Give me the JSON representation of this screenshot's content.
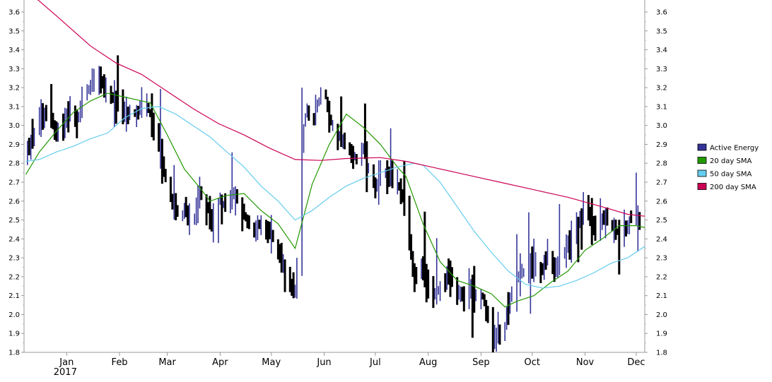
{
  "chart_data": {
    "type": "line",
    "title": "",
    "xlabel": "",
    "ylabel": "",
    "ylim": [
      1.8,
      3.65
    ],
    "y_ticks": [
      "1.8",
      "1.9",
      "2.0",
      "2.1",
      "2.2",
      "2.3",
      "2.4",
      "2.5",
      "2.6",
      "2.7",
      "2.8",
      "2.9",
      "3.0",
      "3.1",
      "3.2",
      "3.3",
      "3.4",
      "3.5",
      "3.6"
    ],
    "x_ticks": [
      {
        "label": "Jan",
        "sub": "2017",
        "day": 16
      },
      {
        "label": "Feb",
        "sub": "",
        "day": 47
      },
      {
        "label": "Mar",
        "sub": "",
        "day": 75
      },
      {
        "label": "Apr",
        "sub": "",
        "day": 106
      },
      {
        "label": "May",
        "sub": "",
        "day": 136
      },
      {
        "label": "Jun",
        "sub": "",
        "day": 167
      },
      {
        "label": "Jul",
        "sub": "",
        "day": 197
      },
      {
        "label": "Aug",
        "sub": "",
        "day": 228
      },
      {
        "label": "Sep",
        "sub": "",
        "day": 259
      },
      {
        "label": "Oct",
        "sub": "",
        "day": 289
      },
      {
        "label": "Nov",
        "sub": "",
        "day": 320
      },
      {
        "label": "Dec",
        "sub": "",
        "day": 350
      }
    ],
    "x_range_days": [
      -9,
      355
    ],
    "grid": false,
    "legend_position": "right",
    "series": [
      {
        "name": "Active Energy",
        "type": "ohlc",
        "color": "#333399",
        "down_color": "#000000",
        "anchors": [
          {
            "day": -8,
            "v": 2.85
          },
          {
            "day": -4,
            "v": 2.92
          },
          {
            "day": 0,
            "v": 3.05
          },
          {
            "day": 5,
            "v": 3.07
          },
          {
            "day": 10,
            "v": 2.98
          },
          {
            "day": 15,
            "v": 3.02
          },
          {
            "day": 18,
            "v": 3.1
          },
          {
            "day": 22,
            "v": 3.0
          },
          {
            "day": 26,
            "v": 3.15
          },
          {
            "day": 30,
            "v": 3.2
          },
          {
            "day": 34,
            "v": 3.28
          },
          {
            "day": 38,
            "v": 3.2
          },
          {
            "day": 42,
            "v": 3.15
          },
          {
            "day": 47,
            "v": 3.1
          },
          {
            "day": 52,
            "v": 3.05
          },
          {
            "day": 58,
            "v": 3.08
          },
          {
            "day": 62,
            "v": 3.12
          },
          {
            "day": 66,
            "v": 3.05
          },
          {
            "day": 70,
            "v": 2.9
          },
          {
            "day": 74,
            "v": 2.72
          },
          {
            "day": 78,
            "v": 2.58
          },
          {
            "day": 82,
            "v": 2.52
          },
          {
            "day": 86,
            "v": 2.55
          },
          {
            "day": 90,
            "v": 2.45
          },
          {
            "day": 94,
            "v": 2.65
          },
          {
            "day": 98,
            "v": 2.58
          },
          {
            "day": 102,
            "v": 2.5
          },
          {
            "day": 106,
            "v": 2.62
          },
          {
            "day": 110,
            "v": 2.55
          },
          {
            "day": 114,
            "v": 2.65
          },
          {
            "day": 118,
            "v": 2.58
          },
          {
            "day": 122,
            "v": 2.5
          },
          {
            "day": 126,
            "v": 2.45
          },
          {
            "day": 130,
            "v": 2.47
          },
          {
            "day": 134,
            "v": 2.45
          },
          {
            "day": 138,
            "v": 2.4
          },
          {
            "day": 142,
            "v": 2.28
          },
          {
            "day": 146,
            "v": 2.15
          },
          {
            "day": 150,
            "v": 2.12
          },
          {
            "day": 152,
            "v": 2.25
          },
          {
            "day": 154,
            "v": 2.9
          },
          {
            "day": 157,
            "v": 3.1
          },
          {
            "day": 160,
            "v": 3.0
          },
          {
            "day": 163,
            "v": 3.1
          },
          {
            "day": 167,
            "v": 3.22
          },
          {
            "day": 170,
            "v": 3.05
          },
          {
            "day": 174,
            "v": 2.95
          },
          {
            "day": 178,
            "v": 2.92
          },
          {
            "day": 182,
            "v": 2.88
          },
          {
            "day": 186,
            "v": 2.82
          },
          {
            "day": 190,
            "v": 2.88
          },
          {
            "day": 194,
            "v": 2.75
          },
          {
            "day": 198,
            "v": 2.68
          },
          {
            "day": 202,
            "v": 2.75
          },
          {
            "day": 206,
            "v": 2.72
          },
          {
            "day": 210,
            "v": 2.7
          },
          {
            "day": 214,
            "v": 2.6
          },
          {
            "day": 217,
            "v": 2.4
          },
          {
            "day": 220,
            "v": 2.2
          },
          {
            "day": 224,
            "v": 2.25
          },
          {
            "day": 228,
            "v": 2.15
          },
          {
            "day": 232,
            "v": 2.12
          },
          {
            "day": 236,
            "v": 2.15
          },
          {
            "day": 240,
            "v": 2.22
          },
          {
            "day": 244,
            "v": 2.15
          },
          {
            "day": 248,
            "v": 2.1
          },
          {
            "day": 252,
            "v": 2.13
          },
          {
            "day": 256,
            "v": 2.12
          },
          {
            "day": 260,
            "v": 2.1
          },
          {
            "day": 264,
            "v": 1.95
          },
          {
            "day": 268,
            "v": 1.9
          },
          {
            "day": 272,
            "v": 1.88
          },
          {
            "day": 275,
            "v": 2.05
          },
          {
            "day": 278,
            "v": 2.15
          },
          {
            "day": 282,
            "v": 2.2
          },
          {
            "day": 286,
            "v": 2.25
          },
          {
            "day": 290,
            "v": 2.28
          },
          {
            "day": 294,
            "v": 2.22
          },
          {
            "day": 298,
            "v": 2.3
          },
          {
            "day": 302,
            "v": 2.25
          },
          {
            "day": 306,
            "v": 2.3
          },
          {
            "day": 310,
            "v": 2.35
          },
          {
            "day": 314,
            "v": 2.42
          },
          {
            "day": 318,
            "v": 2.5
          },
          {
            "day": 320,
            "v": 2.72
          },
          {
            "day": 323,
            "v": 2.5
          },
          {
            "day": 326,
            "v": 2.45
          },
          {
            "day": 330,
            "v": 2.52
          },
          {
            "day": 334,
            "v": 2.48
          },
          {
            "day": 338,
            "v": 2.45
          },
          {
            "day": 342,
            "v": 2.4
          },
          {
            "day": 345,
            "v": 2.48
          },
          {
            "day": 348,
            "v": 2.52
          },
          {
            "day": 352,
            "v": 2.5
          }
        ]
      },
      {
        "name": "20 day SMA",
        "type": "line",
        "color": "#229900",
        "points": [
          {
            "day": -8,
            "v": 2.74
          },
          {
            "day": 0,
            "v": 2.86
          },
          {
            "day": 10,
            "v": 2.97
          },
          {
            "day": 20,
            "v": 3.07
          },
          {
            "day": 30,
            "v": 3.13
          },
          {
            "day": 40,
            "v": 3.17
          },
          {
            "day": 50,
            "v": 3.15
          },
          {
            "day": 60,
            "v": 3.13
          },
          {
            "day": 65,
            "v": 3.12
          },
          {
            "day": 75,
            "v": 2.95
          },
          {
            "day": 85,
            "v": 2.77
          },
          {
            "day": 95,
            "v": 2.66
          },
          {
            "day": 100,
            "v": 2.6
          },
          {
            "day": 110,
            "v": 2.63
          },
          {
            "day": 120,
            "v": 2.64
          },
          {
            "day": 130,
            "v": 2.55
          },
          {
            "day": 140,
            "v": 2.48
          },
          {
            "day": 150,
            "v": 2.35
          },
          {
            "day": 155,
            "v": 2.52
          },
          {
            "day": 160,
            "v": 2.69
          },
          {
            "day": 170,
            "v": 2.9
          },
          {
            "day": 180,
            "v": 3.06
          },
          {
            "day": 190,
            "v": 2.99
          },
          {
            "day": 200,
            "v": 2.9
          },
          {
            "day": 210,
            "v": 2.78
          },
          {
            "day": 215,
            "v": 2.73
          },
          {
            "day": 225,
            "v": 2.48
          },
          {
            "day": 235,
            "v": 2.28
          },
          {
            "day": 245,
            "v": 2.18
          },
          {
            "day": 255,
            "v": 2.15
          },
          {
            "day": 265,
            "v": 2.11
          },
          {
            "day": 273,
            "v": 2.04
          },
          {
            "day": 280,
            "v": 2.07
          },
          {
            "day": 290,
            "v": 2.1
          },
          {
            "day": 300,
            "v": 2.17
          },
          {
            "day": 310,
            "v": 2.23
          },
          {
            "day": 320,
            "v": 2.34
          },
          {
            "day": 330,
            "v": 2.4
          },
          {
            "day": 340,
            "v": 2.47
          },
          {
            "day": 350,
            "v": 2.47
          },
          {
            "day": 355,
            "v": 2.46
          }
        ]
      },
      {
        "name": "50 day SMA",
        "type": "line",
        "color": "#66ccee",
        "points": [
          {
            "day": -8,
            "v": 2.81
          },
          {
            "day": 0,
            "v": 2.82
          },
          {
            "day": 10,
            "v": 2.86
          },
          {
            "day": 20,
            "v": 2.89
          },
          {
            "day": 30,
            "v": 2.93
          },
          {
            "day": 40,
            "v": 2.96
          },
          {
            "day": 50,
            "v": 3.04
          },
          {
            "day": 60,
            "v": 3.09
          },
          {
            "day": 70,
            "v": 3.1
          },
          {
            "day": 80,
            "v": 3.06
          },
          {
            "day": 90,
            "v": 3.0
          },
          {
            "day": 100,
            "v": 2.94
          },
          {
            "day": 110,
            "v": 2.86
          },
          {
            "day": 120,
            "v": 2.78
          },
          {
            "day": 130,
            "v": 2.68
          },
          {
            "day": 140,
            "v": 2.6
          },
          {
            "day": 150,
            "v": 2.5
          },
          {
            "day": 160,
            "v": 2.55
          },
          {
            "day": 170,
            "v": 2.62
          },
          {
            "day": 180,
            "v": 2.68
          },
          {
            "day": 190,
            "v": 2.72
          },
          {
            "day": 200,
            "v": 2.75
          },
          {
            "day": 210,
            "v": 2.78
          },
          {
            "day": 220,
            "v": 2.8
          },
          {
            "day": 225,
            "v": 2.79
          },
          {
            "day": 235,
            "v": 2.7
          },
          {
            "day": 245,
            "v": 2.57
          },
          {
            "day": 255,
            "v": 2.44
          },
          {
            "day": 265,
            "v": 2.33
          },
          {
            "day": 275,
            "v": 2.23
          },
          {
            "day": 285,
            "v": 2.16
          },
          {
            "day": 295,
            "v": 2.14
          },
          {
            "day": 305,
            "v": 2.15
          },
          {
            "day": 315,
            "v": 2.18
          },
          {
            "day": 325,
            "v": 2.22
          },
          {
            "day": 335,
            "v": 2.27
          },
          {
            "day": 345,
            "v": 2.3
          },
          {
            "day": 355,
            "v": 2.36
          }
        ]
      },
      {
        "name": "200 day SMA",
        "type": "line",
        "color": "#cc0055",
        "points": [
          {
            "day": -8,
            "v": 3.72
          },
          {
            "day": 10,
            "v": 3.58
          },
          {
            "day": 30,
            "v": 3.42
          },
          {
            "day": 45,
            "v": 3.33
          },
          {
            "day": 60,
            "v": 3.27
          },
          {
            "day": 75,
            "v": 3.18
          },
          {
            "day": 90,
            "v": 3.09
          },
          {
            "day": 105,
            "v": 3.01
          },
          {
            "day": 120,
            "v": 2.95
          },
          {
            "day": 135,
            "v": 2.88
          },
          {
            "day": 150,
            "v": 2.82
          },
          {
            "day": 165,
            "v": 2.815
          },
          {
            "day": 180,
            "v": 2.825
          },
          {
            "day": 200,
            "v": 2.83
          },
          {
            "day": 215,
            "v": 2.81
          },
          {
            "day": 230,
            "v": 2.78
          },
          {
            "day": 250,
            "v": 2.74
          },
          {
            "day": 270,
            "v": 2.7
          },
          {
            "day": 290,
            "v": 2.66
          },
          {
            "day": 310,
            "v": 2.62
          },
          {
            "day": 330,
            "v": 2.57
          },
          {
            "day": 345,
            "v": 2.53
          },
          {
            "day": 355,
            "v": 2.52
          }
        ]
      }
    ]
  }
}
